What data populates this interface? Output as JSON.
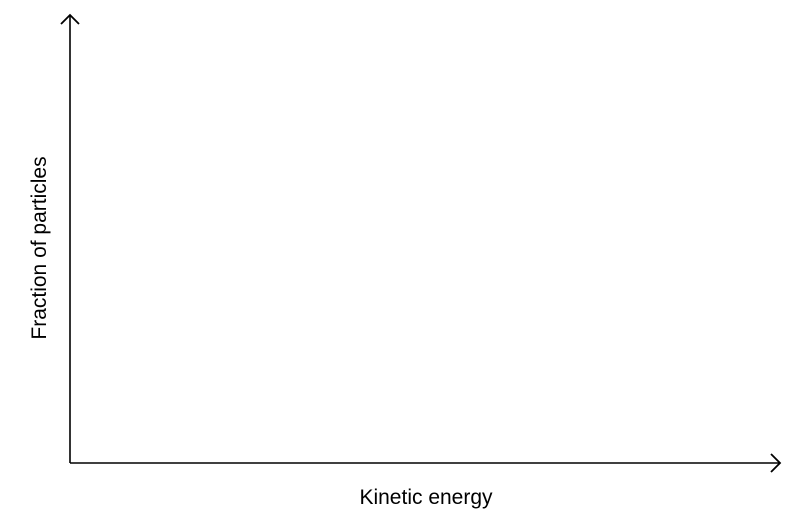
{
  "chart_data": {
    "type": "line",
    "title": "",
    "xlabel": "Kinetic energy",
    "ylabel": "Fraction of particles",
    "series": [],
    "grid": false,
    "axis_style": "arrows, no ticks",
    "colors": {
      "axis": "#000000",
      "text": "#000000"
    }
  }
}
